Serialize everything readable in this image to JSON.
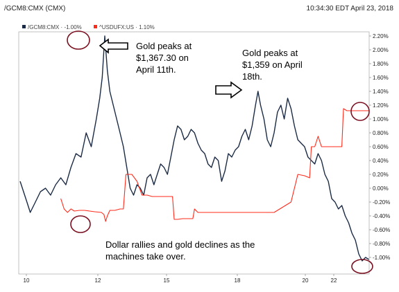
{
  "header": {
    "symbol": "/GCM8:CMX (CMX)",
    "timestamp": "10:34:30 EDT April 23, 2018"
  },
  "legend": [
    {
      "label": "/GCM8:CMX · -1.00%",
      "color": "#1b2a44"
    },
    {
      "label": "^USDUFX:US · 1.10%",
      "color": "#ff2a1a"
    }
  ],
  "chart_data": {
    "type": "line",
    "x_ticks": [
      "10",
      "12",
      "15",
      "18",
      "20",
      "22"
    ],
    "y_ticks": [
      "2.20%",
      "2.00%",
      "1.80%",
      "1.60%",
      "1.40%",
      "1.20%",
      "1.00%",
      "0.80%",
      "0.60%",
      "0.40%",
      "0.20%",
      "0.00%",
      "-0.20%",
      "-0.40%",
      "-0.60%",
      "-0.80%",
      "-1.00%"
    ],
    "ylim": [
      -1.1,
      2.2
    ],
    "y_unit": "%",
    "grid": false,
    "legend_position": "top-left",
    "series": [
      {
        "name": "/GCM8:CMX",
        "color": "#1b2a44",
        "points": [
          [
            0,
            0.1
          ],
          [
            0.2,
            -0.05
          ],
          [
            0.4,
            -0.2
          ],
          [
            0.6,
            -0.35
          ],
          [
            0.9,
            -0.2
          ],
          [
            1.2,
            -0.05
          ],
          [
            1.5,
            0.0
          ],
          [
            1.8,
            -0.1
          ],
          [
            2.1,
            0.05
          ],
          [
            2.4,
            0.15
          ],
          [
            2.7,
            0.05
          ],
          [
            3.0,
            0.3
          ],
          [
            3.3,
            0.5
          ],
          [
            3.6,
            0.45
          ],
          [
            3.9,
            0.8
          ],
          [
            4.2,
            0.6
          ],
          [
            4.5,
            1.0
          ],
          [
            4.7,
            1.3
          ],
          [
            4.85,
            1.6
          ],
          [
            5.0,
            2.2
          ],
          [
            5.15,
            1.7
          ],
          [
            5.3,
            1.4
          ],
          [
            5.5,
            1.2
          ],
          [
            5.7,
            1.0
          ],
          [
            5.9,
            0.8
          ],
          [
            6.1,
            0.6
          ],
          [
            6.3,
            0.3
          ],
          [
            6.5,
            0.0
          ],
          [
            6.7,
            -0.1
          ],
          [
            6.9,
            0.05
          ],
          [
            7.1,
            0.0
          ],
          [
            7.3,
            -0.1
          ],
          [
            7.5,
            0.15
          ],
          [
            7.7,
            0.2
          ],
          [
            7.9,
            0.05
          ],
          [
            8.1,
            0.2
          ],
          [
            8.3,
            0.35
          ],
          [
            8.5,
            0.3
          ],
          [
            8.7,
            0.2
          ],
          [
            8.9,
            0.45
          ],
          [
            9.1,
            0.7
          ],
          [
            9.3,
            0.9
          ],
          [
            9.5,
            0.85
          ],
          [
            9.7,
            0.7
          ],
          [
            9.9,
            0.75
          ],
          [
            10.1,
            0.85
          ],
          [
            10.3,
            0.8
          ],
          [
            10.5,
            0.65
          ],
          [
            10.7,
            0.55
          ],
          [
            10.9,
            0.5
          ],
          [
            11.1,
            0.35
          ],
          [
            11.3,
            0.3
          ],
          [
            11.5,
            0.45
          ],
          [
            11.7,
            0.4
          ],
          [
            11.9,
            0.1
          ],
          [
            12.1,
            0.25
          ],
          [
            12.3,
            0.5
          ],
          [
            12.5,
            0.45
          ],
          [
            12.7,
            0.55
          ],
          [
            12.9,
            0.6
          ],
          [
            13.1,
            0.75
          ],
          [
            13.3,
            0.85
          ],
          [
            13.5,
            0.7
          ],
          [
            13.7,
            0.9
          ],
          [
            13.9,
            1.2
          ],
          [
            14.05,
            1.4
          ],
          [
            14.2,
            1.2
          ],
          [
            14.4,
            1.0
          ],
          [
            14.6,
            0.7
          ],
          [
            14.8,
            0.6
          ],
          [
            15.0,
            0.8
          ],
          [
            15.2,
            1.1
          ],
          [
            15.4,
            1.2
          ],
          [
            15.6,
            1.0
          ],
          [
            15.8,
            1.3
          ],
          [
            16.0,
            1.15
          ],
          [
            16.2,
            0.9
          ],
          [
            16.4,
            0.7
          ],
          [
            16.6,
            0.65
          ],
          [
            16.8,
            0.6
          ],
          [
            17.0,
            0.45
          ],
          [
            17.2,
            0.4
          ],
          [
            17.4,
            0.35
          ],
          [
            17.6,
            0.5
          ],
          [
            17.8,
            0.4
          ],
          [
            18.0,
            0.2
          ],
          [
            18.2,
            0.1
          ],
          [
            18.4,
            -0.15
          ],
          [
            18.6,
            -0.2
          ],
          [
            18.8,
            -0.3
          ],
          [
            19.0,
            -0.25
          ],
          [
            19.2,
            -0.4
          ],
          [
            19.4,
            -0.5
          ],
          [
            19.6,
            -0.65
          ],
          [
            19.8,
            -0.75
          ],
          [
            20.0,
            -0.95
          ],
          [
            20.2,
            -1.05
          ],
          [
            20.4,
            -1.0
          ],
          [
            20.6,
            -1.03
          ]
        ]
      },
      {
        "name": "^USDUFX:US",
        "color": "#ff2a1a",
        "points": [
          [
            2.4,
            -0.15
          ],
          [
            2.6,
            -0.3
          ],
          [
            2.8,
            -0.35
          ],
          [
            3.0,
            -0.3
          ],
          [
            3.2,
            -0.33
          ],
          [
            3.5,
            -0.32
          ],
          [
            3.8,
            -0.32
          ],
          [
            4.1,
            -0.33
          ],
          [
            4.4,
            -0.34
          ],
          [
            4.8,
            -0.35
          ],
          [
            4.95,
            -0.38
          ],
          [
            5.05,
            -0.48
          ],
          [
            5.15,
            -0.4
          ],
          [
            5.3,
            -0.32
          ],
          [
            5.6,
            -0.32
          ],
          [
            5.9,
            -0.3
          ],
          [
            6.1,
            -0.3
          ],
          [
            6.25,
            0.2
          ],
          [
            6.6,
            0.2
          ],
          [
            6.9,
            0.1
          ],
          [
            7.2,
            -0.1
          ],
          [
            7.5,
            -0.1
          ],
          [
            7.8,
            -0.12
          ],
          [
            8.1,
            -0.12
          ],
          [
            8.4,
            -0.12
          ],
          [
            8.7,
            -0.12
          ],
          [
            9.0,
            -0.12
          ],
          [
            9.1,
            -0.45
          ],
          [
            9.3,
            -0.45
          ],
          [
            9.6,
            -0.44
          ],
          [
            9.9,
            -0.44
          ],
          [
            10.2,
            -0.44
          ],
          [
            10.3,
            -0.3
          ],
          [
            10.5,
            -0.35
          ],
          [
            10.8,
            -0.35
          ],
          [
            11.1,
            -0.35
          ],
          [
            11.4,
            -0.35
          ],
          [
            11.7,
            -0.35
          ],
          [
            12.0,
            -0.35
          ],
          [
            12.3,
            -0.35
          ],
          [
            12.6,
            -0.35
          ],
          [
            12.9,
            -0.35
          ],
          [
            14.0,
            -0.35
          ],
          [
            15.0,
            -0.35
          ],
          [
            16.0,
            -0.2
          ],
          [
            16.4,
            0.2
          ],
          [
            16.8,
            0.18
          ],
          [
            17.1,
            0.15
          ],
          [
            17.2,
            0.6
          ],
          [
            17.4,
            0.6
          ],
          [
            17.6,
            0.75
          ],
          [
            17.8,
            0.6
          ],
          [
            18.2,
            0.6
          ],
          [
            18.6,
            0.6
          ],
          [
            19.0,
            0.6
          ],
          [
            19.1,
            1.15
          ],
          [
            19.3,
            1.12
          ],
          [
            19.5,
            1.12
          ],
          [
            20.0,
            1.12
          ],
          [
            20.6,
            1.12
          ]
        ]
      }
    ]
  },
  "annotations": {
    "peak1_line1": "Gold peaks at",
    "peak1_line2": "$1,367.30 on",
    "peak1_line3": "April 11th.",
    "peak2_line1": "Gold peaks at",
    "peak2_line2": "$1,359 on April",
    "peak2_line3": "18th.",
    "bottom_line1": "Dollar rallies and gold declines as the",
    "bottom_line2": "machines take over."
  }
}
